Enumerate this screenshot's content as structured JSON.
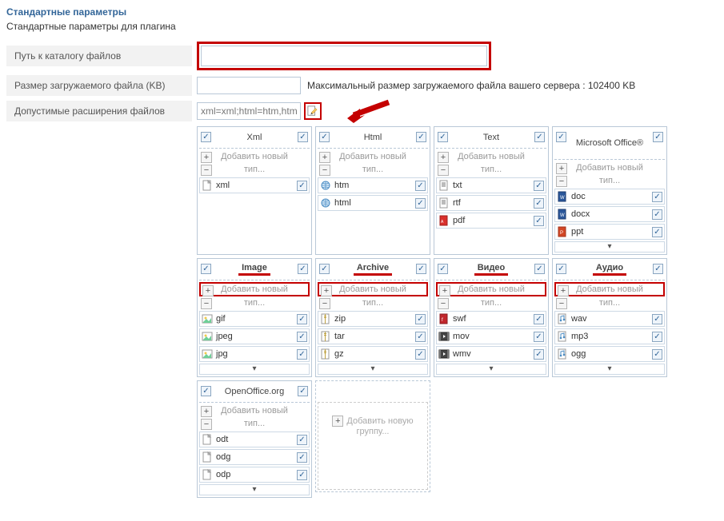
{
  "section": {
    "title": "Стандартные параметры",
    "subtitle": "Стандартные параметры для плагина"
  },
  "params": {
    "path_label": "Путь к каталогу файлов",
    "path_value": "",
    "size_label": "Размер загружаемого файла (KB)",
    "size_value": "",
    "size_after": "Максимальный размер загружаемого файла вашего сервера : 102400 KB",
    "ext_label": "Допустимые расширения файлов",
    "ext_value": "xml=xml;html=htm,html;t"
  },
  "ui": {
    "add_new": "Добавить новый тип...",
    "add_group": "Добавить новую группу..."
  },
  "colors": {
    "accent": "#336699",
    "highlight_border": "#c40000",
    "box_border": "#b9c8d7"
  },
  "groups": [
    {
      "id": "xml",
      "title": "Xml",
      "underline": false,
      "add_highlight": false,
      "tallhead": false,
      "items": [
        {
          "icon": "doc",
          "label": "xml"
        }
      ],
      "expand": false
    },
    {
      "id": "html",
      "title": "Html",
      "underline": false,
      "add_highlight": false,
      "tallhead": false,
      "items": [
        {
          "icon": "globe",
          "label": "htm"
        },
        {
          "icon": "globe",
          "label": "html"
        }
      ],
      "expand": false
    },
    {
      "id": "text",
      "title": "Text",
      "underline": false,
      "add_highlight": false,
      "tallhead": false,
      "items": [
        {
          "icon": "txt",
          "label": "txt"
        },
        {
          "icon": "txt",
          "label": "rtf"
        },
        {
          "icon": "pdf",
          "label": "pdf"
        }
      ],
      "expand": false
    },
    {
      "id": "msoffice",
      "title": "Microsoft Office®",
      "underline": false,
      "add_highlight": false,
      "tallhead": true,
      "items": [
        {
          "icon": "word",
          "label": "doc"
        },
        {
          "icon": "word",
          "label": "docx"
        },
        {
          "icon": "ppt",
          "label": "ppt"
        }
      ],
      "expand": true
    },
    {
      "id": "image",
      "title": "Image",
      "underline": true,
      "add_highlight": true,
      "tallhead": false,
      "items": [
        {
          "icon": "img",
          "label": "gif"
        },
        {
          "icon": "img",
          "label": "jpeg"
        },
        {
          "icon": "img",
          "label": "jpg"
        }
      ],
      "expand": true
    },
    {
      "id": "archive",
      "title": "Archive",
      "underline": true,
      "add_highlight": true,
      "tallhead": false,
      "items": [
        {
          "icon": "zip",
          "label": "zip"
        },
        {
          "icon": "zip",
          "label": "tar"
        },
        {
          "icon": "zip",
          "label": "gz"
        }
      ],
      "expand": true
    },
    {
      "id": "video",
      "title": "Видео",
      "underline": true,
      "add_highlight": true,
      "tallhead": false,
      "items": [
        {
          "icon": "swf",
          "label": "swf"
        },
        {
          "icon": "vid",
          "label": "mov"
        },
        {
          "icon": "vid",
          "label": "wmv"
        }
      ],
      "expand": true
    },
    {
      "id": "audio",
      "title": "Аудио",
      "underline": true,
      "add_highlight": true,
      "tallhead": false,
      "items": [
        {
          "icon": "aud",
          "label": "wav"
        },
        {
          "icon": "aud",
          "label": "mp3"
        },
        {
          "icon": "aud",
          "label": "ogg"
        }
      ],
      "expand": true
    },
    {
      "id": "openoffice",
      "title": "OpenOffice.org",
      "underline": false,
      "add_highlight": false,
      "tallhead": false,
      "items": [
        {
          "icon": "doc",
          "label": "odt"
        },
        {
          "icon": "doc",
          "label": "odg"
        },
        {
          "icon": "doc",
          "label": "odp"
        }
      ],
      "expand": true
    }
  ]
}
